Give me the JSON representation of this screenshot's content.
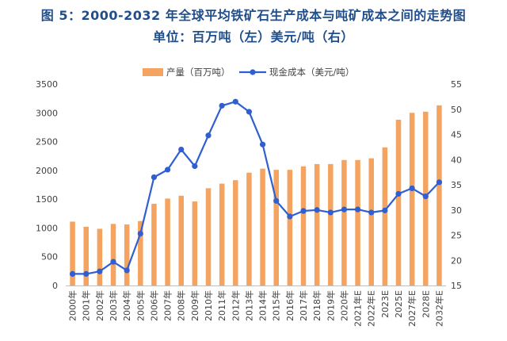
{
  "title_line1": "图 5：2000-2032 年全球平均铁矿石生产成本与吨矿成本之间的走势图",
  "title_line2": "单位：百万吨（左）美元/吨（右）",
  "colors": {
    "bar": "#f4a460",
    "line": "#2f5fd0",
    "title": "#1f4e8c"
  },
  "chart_data": {
    "type": "bar+line",
    "categories": [
      "2000年",
      "2001年",
      "2002年",
      "2003年",
      "2004年",
      "2005年",
      "2006年",
      "2007年",
      "2008年",
      "2009年",
      "2010年",
      "2011年",
      "2012年",
      "2013年",
      "2014年",
      "2015年",
      "2016年",
      "2017年",
      "2018年",
      "2019年",
      "2020年",
      "2021年E",
      "2022年E",
      "2023E",
      "2025E",
      "2027年E",
      "2028E",
      "2032年E"
    ],
    "series": [
      {
        "name": "产量（百万吨）",
        "type": "bar",
        "axis": "left",
        "values": [
          1110,
          1020,
          985,
          1070,
          1060,
          1120,
          1420,
          1510,
          1560,
          1460,
          1690,
          1770,
          1830,
          1960,
          2030,
          2010,
          2010,
          2070,
          2110,
          2110,
          2180,
          2180,
          2210,
          2400,
          2880,
          3000,
          3020,
          3130
        ]
      },
      {
        "name": "现金成本（美元/吨）",
        "type": "line",
        "axis": "right",
        "values": [
          17.3,
          17.3,
          17.8,
          19.7,
          18.0,
          25.3,
          36.5,
          38.0,
          42.0,
          38.7,
          44.8,
          50.7,
          51.5,
          49.5,
          43.0,
          31.8,
          28.7,
          29.8,
          30.0,
          29.5,
          30.1,
          30.1,
          29.5,
          29.9,
          33.2,
          34.3,
          32.7,
          35.5
        ]
      }
    ],
    "y_left": {
      "min": 0,
      "max": 3500,
      "ticks": [
        0,
        500,
        1000,
        1500,
        2000,
        2500,
        3000,
        3500
      ]
    },
    "y_right": {
      "min": 15,
      "max": 55,
      "ticks": [
        15,
        20,
        25,
        30,
        35,
        40,
        45,
        50,
        55
      ]
    },
    "legend": {
      "position": "top",
      "items": [
        "产量（百万吨）",
        "现金成本（美元/吨）"
      ]
    }
  }
}
